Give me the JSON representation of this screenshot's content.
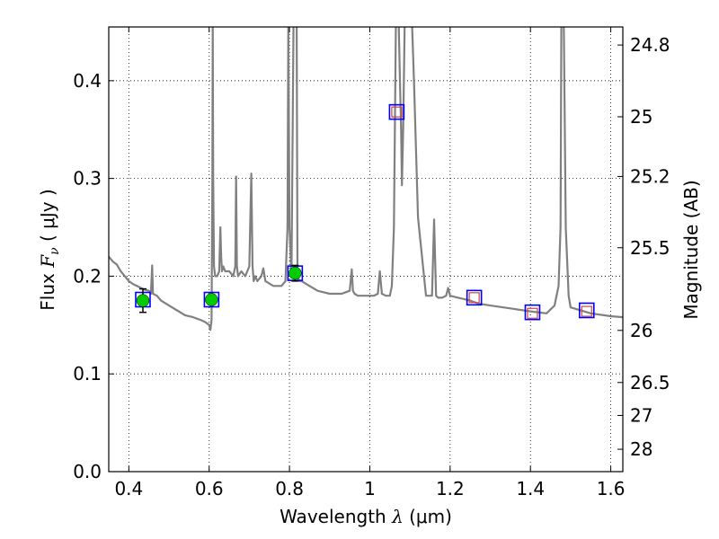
{
  "chart_data": {
    "type": "scatter",
    "title": "",
    "xlabel": {
      "prefix": "Wavelength  ",
      "symbol": "λ",
      "suffix": " (μm)"
    },
    "ylabel": {
      "prefix": "Flux  ",
      "symbol": "F",
      "subscript": "ν",
      "suffix": "  ( μJy )"
    },
    "y2label": "Magnitude (AB)",
    "xlim": [
      0.35,
      1.63
    ],
    "ylim": [
      0.0,
      0.455
    ],
    "grid": true,
    "grid_style": "dotted",
    "x_ticks": [
      {
        "value": 0.4,
        "label": "0.4"
      },
      {
        "value": 0.6,
        "label": "0.6"
      },
      {
        "value": 0.8,
        "label": "0.8"
      },
      {
        "value": 1.0,
        "label": "1"
      },
      {
        "value": 1.2,
        "label": "1.2"
      },
      {
        "value": 1.4,
        "label": "1.4"
      },
      {
        "value": 1.6,
        "label": "1.6"
      }
    ],
    "y_ticks": [
      {
        "value": 0.0,
        "label": "0.0"
      },
      {
        "value": 0.1,
        "label": "0.1"
      },
      {
        "value": 0.2,
        "label": "0.2"
      },
      {
        "value": 0.3,
        "label": "0.3"
      },
      {
        "value": 0.4,
        "label": "0.4"
      }
    ],
    "y2_ticks": [
      {
        "flux": 0.4365,
        "label": "24.8"
      },
      {
        "flux": 0.3631,
        "label": "25"
      },
      {
        "flux": 0.302,
        "label": "25.2"
      },
      {
        "flux": 0.2291,
        "label": "25.5"
      },
      {
        "flux": 0.1445,
        "label": "26"
      },
      {
        "flux": 0.0912,
        "label": "26.5"
      },
      {
        "flux": 0.0575,
        "label": "27"
      },
      {
        "flux": 0.0229,
        "label": "28"
      }
    ],
    "colors": {
      "spectrum": "#808080",
      "observed_fill": "#00cc00",
      "box": "#0000ff",
      "model_marker": "#cc4444",
      "errorbar": "#000000",
      "grid": "#000000",
      "axes": "#000000"
    },
    "series": [
      {
        "kind": "model-spectrum",
        "color": "#808080",
        "x": [
          0.35,
          0.36,
          0.37,
          0.38,
          0.39,
          0.4,
          0.41,
          0.42,
          0.43,
          0.44,
          0.45,
          0.455,
          0.458,
          0.46,
          0.47,
          0.48,
          0.5,
          0.52,
          0.54,
          0.56,
          0.58,
          0.59,
          0.6,
          0.603,
          0.606,
          0.608,
          0.609,
          0.61,
          0.612,
          0.615,
          0.62,
          0.625,
          0.628,
          0.63,
          0.632,
          0.635,
          0.64,
          0.65,
          0.66,
          0.665,
          0.667,
          0.669,
          0.672,
          0.68,
          0.69,
          0.7,
          0.705,
          0.708,
          0.711,
          0.715,
          0.72,
          0.73,
          0.735,
          0.74,
          0.76,
          0.78,
          0.79,
          0.795,
          0.797,
          0.8,
          0.805,
          0.81,
          0.812,
          0.815,
          0.818,
          0.82,
          0.825,
          0.83,
          0.85,
          0.87,
          0.9,
          0.93,
          0.95,
          0.955,
          0.958,
          0.962,
          0.97,
          0.99,
          1.01,
          1.02,
          1.025,
          1.03,
          1.04,
          1.05,
          1.055,
          1.06,
          1.065,
          1.068,
          1.072,
          1.075,
          1.078,
          1.08,
          1.083,
          1.087,
          1.09,
          1.095,
          1.1,
          1.105,
          1.11,
          1.12,
          1.14,
          1.155,
          1.16,
          1.165,
          1.17,
          1.18,
          1.19,
          1.195,
          1.2,
          1.22,
          1.25,
          1.27,
          1.3,
          1.35,
          1.4,
          1.44,
          1.46,
          1.47,
          1.475,
          1.477,
          1.48,
          1.483,
          1.488,
          1.495,
          1.5,
          1.55,
          1.6,
          1.63
        ],
        "y": [
          0.22,
          0.215,
          0.212,
          0.205,
          0.2,
          0.195,
          0.192,
          0.19,
          0.188,
          0.186,
          0.185,
          0.182,
          0.211,
          0.182,
          0.18,
          0.175,
          0.17,
          0.165,
          0.16,
          0.158,
          0.155,
          0.153,
          0.15,
          0.145,
          0.155,
          0.3,
          0.46,
          0.3,
          0.21,
          0.2,
          0.2,
          0.205,
          0.25,
          0.22,
          0.205,
          0.21,
          0.205,
          0.205,
          0.2,
          0.21,
          0.302,
          0.21,
          0.2,
          0.205,
          0.2,
          0.21,
          0.305,
          0.21,
          0.195,
          0.2,
          0.195,
          0.2,
          0.208,
          0.195,
          0.19,
          0.19,
          0.195,
          0.25,
          0.46,
          0.25,
          0.2,
          0.46,
          0.46,
          0.46,
          0.46,
          0.2,
          0.195,
          0.195,
          0.19,
          0.185,
          0.182,
          0.182,
          0.185,
          0.207,
          0.185,
          0.182,
          0.18,
          0.18,
          0.18,
          0.182,
          0.205,
          0.182,
          0.18,
          0.18,
          0.19,
          0.25,
          0.46,
          0.46,
          0.46,
          0.4,
          0.35,
          0.293,
          0.35,
          0.46,
          0.46,
          0.46,
          0.46,
          0.46,
          0.4,
          0.26,
          0.18,
          0.18,
          0.258,
          0.18,
          0.178,
          0.178,
          0.18,
          0.188,
          0.18,
          0.178,
          0.175,
          0.172,
          0.17,
          0.167,
          0.164,
          0.162,
          0.17,
          0.19,
          0.25,
          0.46,
          0.46,
          0.46,
          0.25,
          0.18,
          0.168,
          0.162,
          0.159,
          0.158
        ]
      },
      {
        "name": "",
        "kind": "observed",
        "marker": "circle",
        "points": [
          {
            "x": 0.435,
            "y": 0.175,
            "yerr": 0.012
          },
          {
            "x": 0.606,
            "y": 0.176,
            "yerr": 0.005
          },
          {
            "x": 0.814,
            "y": 0.203,
            "yerr": 0.008
          }
        ]
      },
      {
        "name": "",
        "kind": "model-photometry",
        "marker": "box",
        "points": [
          {
            "x": 0.435,
            "y": 0.176
          },
          {
            "x": 0.606,
            "y": 0.176
          },
          {
            "x": 0.814,
            "y": 0.203
          },
          {
            "x": 1.067,
            "y": 0.368
          },
          {
            "x": 1.26,
            "y": 0.178
          },
          {
            "x": 1.405,
            "y": 0.163
          },
          {
            "x": 1.54,
            "y": 0.165
          }
        ]
      },
      {
        "name": "",
        "kind": "upper-limits",
        "marker": "open-square",
        "points": [
          {
            "x": 1.067,
            "y": 0.368
          },
          {
            "x": 1.26,
            "y": 0.178
          },
          {
            "x": 1.405,
            "y": 0.162
          },
          {
            "x": 1.54,
            "y": 0.164
          }
        ]
      }
    ]
  }
}
